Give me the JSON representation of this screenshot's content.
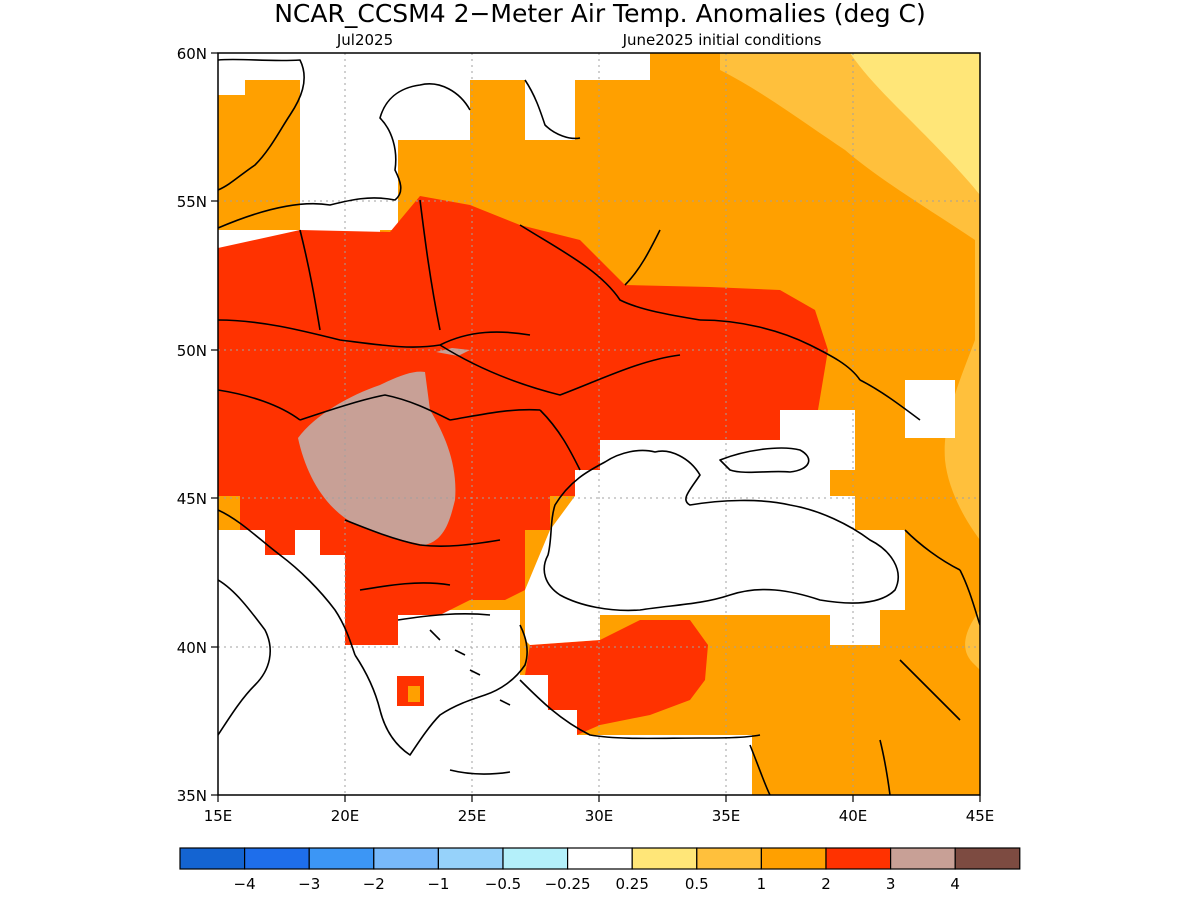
{
  "title": "NCAR_CCSM4 2−Meter Air Temp. Anomalies (deg C)",
  "subtitle_left": "Jul2025",
  "subtitle_right": "June2025 initial conditions",
  "lat_labels": [
    "60N",
    "55N",
    "50N",
    "45N",
    "40N",
    "35N"
  ],
  "lon_labels": [
    "15E",
    "20E",
    "25E",
    "30E",
    "35E",
    "40E",
    "45E"
  ],
  "colorbar": {
    "colors": [
      "#1464d2",
      "#1e6eeb",
      "#3c96f5",
      "#78b9fa",
      "#96d2fa",
      "#b4f0fa",
      "#ffffff",
      "#ffe678",
      "#ffc03c",
      "#ffa000",
      "#ff3200",
      "#c8a096",
      "#7d4b41"
    ],
    "ticks": [
      "−4",
      "−3",
      "−2",
      "−1",
      "−0.5",
      "−0.25",
      "0.25",
      "0.5",
      "1",
      "2",
      "3",
      "4"
    ]
  },
  "map_data": {
    "extent": {
      "lon": [
        15,
        45
      ],
      "lat": [
        35,
        60
      ]
    },
    "shading_colors": {
      "anom_0_5_1": "#ffc03c",
      "anom_0_25_0_5": "#ffe678",
      "anom_1_2": "#ffa000",
      "anom_2_3": "#ff3200",
      "anom_3_4": "#c8a096"
    }
  }
}
